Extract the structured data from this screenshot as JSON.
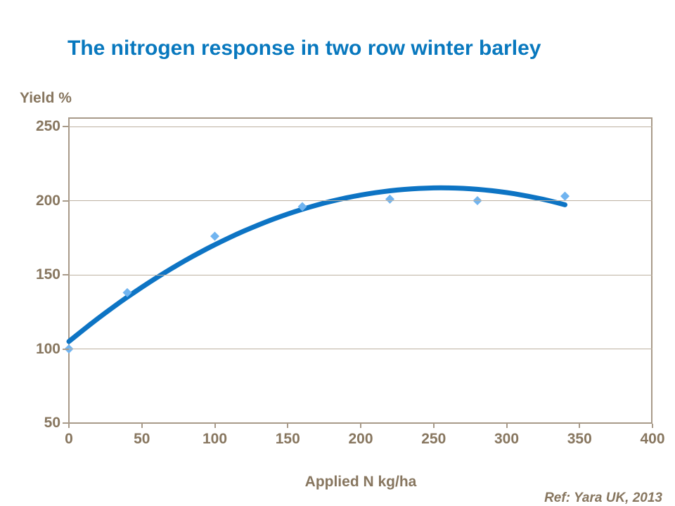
{
  "title": "The nitrogen response in two row winter barley",
  "y_axis_label": "Yield %",
  "x_axis_label": "Applied N kg/ha",
  "reference": "Ref: Yara UK, 2013",
  "colors": {
    "title_blue": "#0878be",
    "curve_blue": "#0d74c4",
    "marker_blue": "#70b4f0",
    "axis_text_brown": "#87765f",
    "axis_line": "#a89a89",
    "gridline": "#bdb1a1",
    "background": "#ffffff"
  },
  "chart_data": {
    "type": "scatter",
    "title": "The nitrogen response in two row winter barley",
    "xlabel": "Applied N kg/ha",
    "ylabel": "Yield %",
    "xlim": [
      0,
      400
    ],
    "ylim": [
      50,
      250
    ],
    "x_ticks": [
      0,
      50,
      100,
      150,
      200,
      250,
      300,
      350,
      400
    ],
    "y_ticks": [
      50,
      100,
      150,
      200,
      250
    ],
    "grid": "horizontal-only",
    "legend_position": "none",
    "marker_shape": "diamond",
    "points": [
      {
        "x": 0,
        "y": 100
      },
      {
        "x": 40,
        "y": 138
      },
      {
        "x": 100,
        "y": 176
      },
      {
        "x": 160,
        "y": 196
      },
      {
        "x": 220,
        "y": 201
      },
      {
        "x": 280,
        "y": 200
      },
      {
        "x": 340,
        "y": 203
      }
    ],
    "trend_line": {
      "type": "quadratic",
      "coefficients": {
        "c0": 105,
        "c1": 0.8118,
        "c2": -0.00159
      },
      "x_range": [
        0,
        340
      ],
      "peak": {
        "x": 255,
        "y": 209
      }
    }
  }
}
